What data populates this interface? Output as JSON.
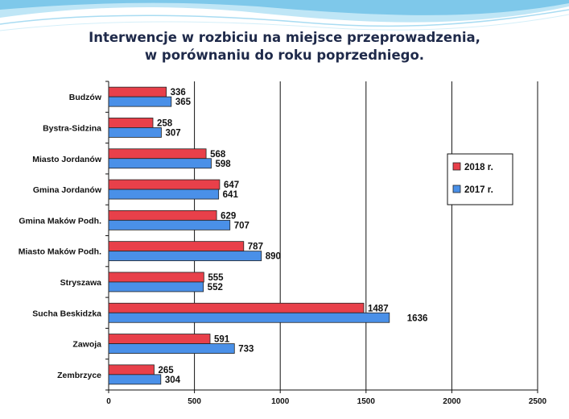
{
  "title": {
    "line1": "Interwencje w rozbiciu na miejsce przeprowadzenia,",
    "line2": "w porównaniu do roku poprzedniego."
  },
  "colors": {
    "series_2018": "#e8404a",
    "series_2017": "#4a90e8",
    "header_wave": "#7ec8ea"
  },
  "chart_data": {
    "type": "bar",
    "orientation": "horizontal",
    "categories": [
      "Budzów",
      "Bystra-Sidzina",
      "Miasto Jordanów",
      "Gmina Jordanów",
      "Gmina Maków Podh.",
      "Miasto Maków Podh.",
      "Stryszawa",
      "Sucha Beskidzka",
      "Zawoja",
      "Zembrzyce"
    ],
    "series": [
      {
        "name": "2018 r.",
        "values": [
          336,
          258,
          568,
          647,
          629,
          787,
          555,
          1487,
          591,
          265
        ]
      },
      {
        "name": "2017 r.",
        "values": [
          365,
          307,
          598,
          641,
          707,
          890,
          552,
          1636,
          733,
          304
        ]
      }
    ],
    "xlim": [
      0,
      2500
    ],
    "xticks": [
      0,
      500,
      1000,
      1500,
      2000,
      2500
    ],
    "grid": "vertical",
    "legend": "right"
  }
}
